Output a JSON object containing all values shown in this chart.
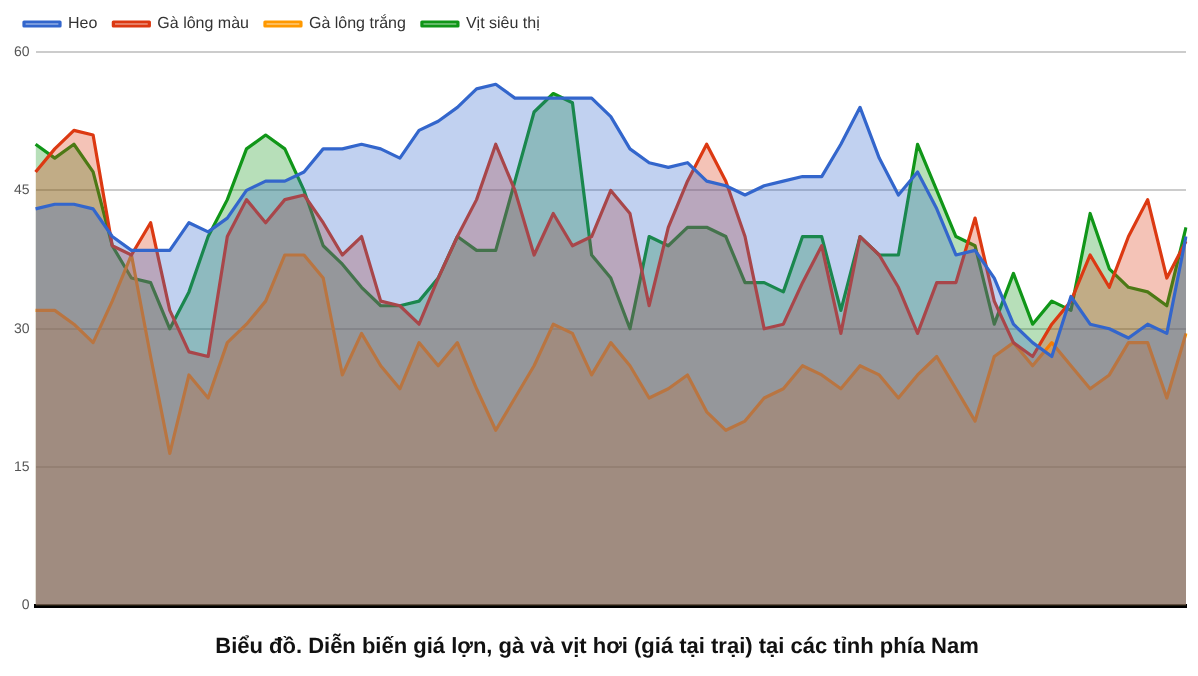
{
  "chart_data": {
    "type": "area",
    "title": "Biểu đồ. Diễn biến giá lợn, gà và vịt hơi (giá tại trại) tại các tỉnh phía Nam",
    "categories": [
      null,
      null,
      null,
      null,
      null,
      null,
      null,
      null,
      null,
      null,
      null,
      null,
      null,
      null,
      null,
      null,
      null,
      null,
      null,
      null,
      null,
      null,
      null,
      null,
      null,
      null,
      null,
      null,
      null,
      null,
      null,
      null,
      null,
      null,
      null,
      null,
      null,
      null,
      null,
      null,
      null,
      null,
      null,
      null,
      null,
      null,
      null,
      null,
      null,
      null,
      null,
      null,
      null,
      null,
      null,
      null,
      null,
      null,
      null,
      null,
      null
    ],
    "series": [
      {
        "name": "Heo",
        "color": "#3366cc",
        "values": [
          43,
          43.5,
          43.5,
          43,
          40,
          38.5,
          38.5,
          38.5,
          41.5,
          40.5,
          42,
          45,
          46,
          46,
          47,
          49.5,
          49.5,
          50,
          49.5,
          48.5,
          51.5,
          52.5,
          54,
          56,
          56.5,
          55,
          55,
          55,
          55,
          55,
          53,
          49.5,
          48,
          47.5,
          48,
          46,
          45.5,
          44.5,
          45.5,
          46,
          46.5,
          46.5,
          50,
          54,
          48.5,
          44.5,
          47,
          43,
          38,
          38.5,
          35.5,
          30.5,
          28.5,
          27,
          33.5,
          30.5,
          30,
          29,
          30.5,
          29.5,
          40
        ]
      },
      {
        "name": "Gà lông màu",
        "color": "#dc3912",
        "values": [
          47,
          49.5,
          51.5,
          51,
          39,
          38,
          41.5,
          32,
          27.5,
          27,
          40,
          44,
          41.5,
          44,
          44.5,
          41.5,
          38,
          40,
          33,
          32.5,
          30.5,
          35.5,
          40,
          44,
          50,
          45,
          38,
          42.5,
          39,
          40,
          45,
          42.5,
          32.5,
          41,
          46,
          50,
          46,
          40,
          30,
          30.5,
          35,
          39,
          29.5,
          40,
          38,
          34.5,
          29.5,
          35,
          35,
          42,
          33,
          28.5,
          27,
          30.5,
          33,
          38,
          34.5,
          40,
          44,
          35.5,
          39.5
        ]
      },
      {
        "name": "Gà lông trắng",
        "color": "#ff9900",
        "values": [
          32,
          32,
          30.5,
          28.5,
          33,
          38,
          27,
          16.5,
          25,
          22.5,
          28.5,
          30.5,
          33,
          38,
          38,
          35.5,
          25,
          29.5,
          26,
          23.5,
          28.5,
          26,
          28.5,
          23.5,
          19,
          22.5,
          26,
          30.5,
          29.5,
          25,
          28.5,
          26,
          22.5,
          23.5,
          25,
          21,
          19,
          20,
          22.5,
          23.5,
          26,
          25,
          23.5,
          26,
          25,
          22.5,
          25,
          27,
          23.5,
          20,
          27,
          28.5,
          26,
          28.5,
          26,
          23.5,
          25,
          28.5,
          28.5,
          22.5,
          29.5
        ]
      },
      {
        "name": "Vịt siêu thị",
        "color": "#109618",
        "values": [
          50,
          48.5,
          50,
          47,
          39,
          35.5,
          35,
          30,
          34,
          40,
          44,
          49.5,
          51,
          49.5,
          45,
          39,
          37,
          34.5,
          32.5,
          32.5,
          33,
          35.5,
          40,
          38.5,
          38.5,
          46,
          53.5,
          55.5,
          54.5,
          38,
          35.5,
          30,
          40,
          39,
          41,
          41,
          40,
          35,
          35,
          34,
          40,
          40,
          32,
          40,
          38,
          38,
          50,
          45,
          40,
          39,
          30.5,
          36,
          30.5,
          33,
          32,
          42.5,
          36.5,
          34.5,
          34,
          32.5,
          41
        ]
      }
    ],
    "ylim": [
      0,
      60
    ],
    "yticks": [
      0,
      15,
      30,
      45,
      60
    ],
    "grid": "y",
    "legend": "top left"
  }
}
